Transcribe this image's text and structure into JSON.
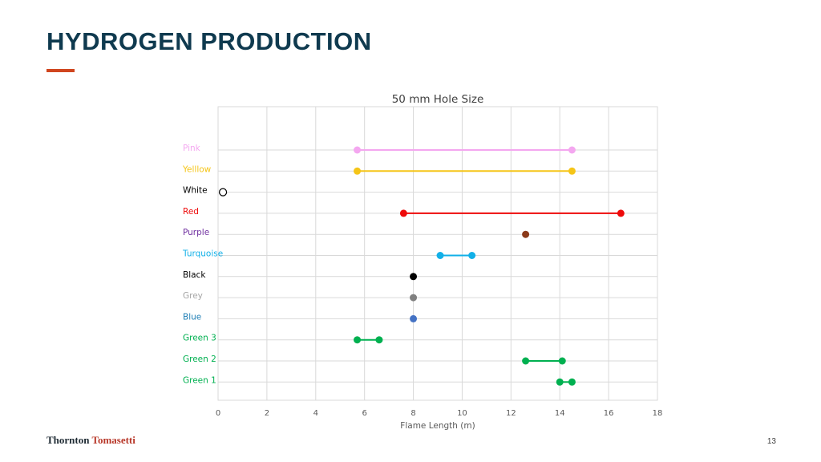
{
  "slide": {
    "title": "HYDROGEN PRODUCTION",
    "page_number": "13",
    "logo": {
      "first": "Thornton",
      "second": "Tomasetti"
    },
    "accent_color": "#d0461f",
    "title_color": "#0f3a4f"
  },
  "chart_data": {
    "type": "range-dot",
    "title": "50 mm Hole Size",
    "xlabel": "Flame Length (m)",
    "ylabel": "",
    "xlim": [
      0,
      18
    ],
    "x_ticks": [
      "0",
      "2",
      "4",
      "6",
      "8",
      "10",
      "12",
      "14",
      "16",
      "18"
    ],
    "grid": true,
    "series": [
      {
        "name": "Pink",
        "min": 5.7,
        "max": 14.5,
        "color": "#f4a7f0",
        "hollow": false
      },
      {
        "name": "Yelllow",
        "min": 5.7,
        "max": 14.5,
        "color": "#f5c518",
        "hollow": false
      },
      {
        "name": "White",
        "min": 0.2,
        "max": 0.2,
        "color": "#000000",
        "hollow": true
      },
      {
        "name": "Red",
        "min": 7.6,
        "max": 16.5,
        "color": "#ee0a0a",
        "hollow": false
      },
      {
        "name": "Purple",
        "min": 12.6,
        "max": 12.6,
        "color": "#8b3a1a",
        "label_color": "#7030a0",
        "hollow": false
      },
      {
        "name": "Turquoise",
        "min": 9.1,
        "max": 10.4,
        "color": "#12b0e8",
        "hollow": false
      },
      {
        "name": "Black",
        "min": 8.0,
        "max": 8.0,
        "color": "#000000",
        "hollow": false
      },
      {
        "name": "Grey",
        "min": 8.0,
        "max": 8.0,
        "color": "#808080",
        "label_color": "#a6a6a6",
        "hollow": false
      },
      {
        "name": "Blue",
        "min": 8.0,
        "max": 8.0,
        "color": "#4472c4",
        "label_color": "#1f7fb6",
        "hollow": false
      },
      {
        "name": "Green 3",
        "min": 5.7,
        "max": 6.6,
        "color": "#00b050",
        "hollow": false
      },
      {
        "name": "Green 2",
        "min": 12.6,
        "max": 14.1,
        "color": "#00b050",
        "hollow": false
      },
      {
        "name": "Green 1",
        "min": 14.0,
        "max": 14.5,
        "color": "#00b050",
        "hollow": false
      }
    ]
  }
}
